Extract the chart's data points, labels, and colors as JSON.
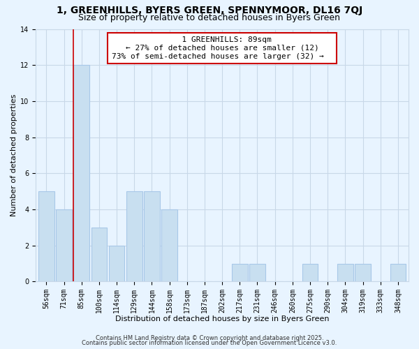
{
  "title": "1, GREENHILLS, BYERS GREEN, SPENNYMOOR, DL16 7QJ",
  "subtitle": "Size of property relative to detached houses in Byers Green",
  "xlabel": "Distribution of detached houses by size in Byers Green",
  "ylabel": "Number of detached properties",
  "bar_color": "#c8dff0",
  "bar_edgecolor": "#a8c8e8",
  "categories": [
    "56sqm",
    "71sqm",
    "85sqm",
    "100sqm",
    "114sqm",
    "129sqm",
    "144sqm",
    "158sqm",
    "173sqm",
    "187sqm",
    "202sqm",
    "217sqm",
    "231sqm",
    "246sqm",
    "260sqm",
    "275sqm",
    "290sqm",
    "304sqm",
    "319sqm",
    "333sqm",
    "348sqm"
  ],
  "values": [
    5,
    4,
    12,
    3,
    2,
    5,
    5,
    4,
    0,
    0,
    0,
    1,
    1,
    0,
    0,
    1,
    0,
    1,
    1,
    0,
    1
  ],
  "ylim": [
    0,
    14
  ],
  "yticks": [
    0,
    2,
    4,
    6,
    8,
    10,
    12,
    14
  ],
  "property_line_index": 2,
  "annotation_title": "1 GREENHILLS: 89sqm",
  "annotation_line1": "← 27% of detached houses are smaller (12)",
  "annotation_line2": "73% of semi-detached houses are larger (32) →",
  "annotation_box_color": "#ffffff",
  "annotation_box_edgecolor": "#cc0000",
  "property_line_color": "#cc0000",
  "footer1": "Contains HM Land Registry data © Crown copyright and database right 2025.",
  "footer2": "Contains public sector information licensed under the Open Government Licence v3.0.",
  "background_color": "#e8f4ff",
  "plot_bg_color": "#ddeeff",
  "grid_color": "#c8d8e8",
  "title_fontsize": 10,
  "subtitle_fontsize": 9,
  "axis_label_fontsize": 8,
  "tick_fontsize": 7,
  "annotation_fontsize": 8,
  "footer_fontsize": 6
}
